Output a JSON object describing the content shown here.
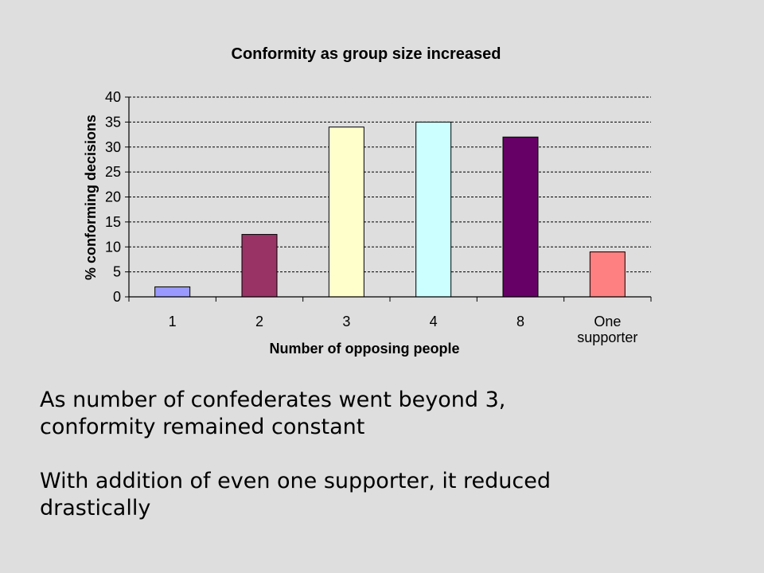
{
  "chart_data": {
    "type": "bar",
    "title": "Conformity as group size increased",
    "xlabel": "Number of opposing people",
    "ylabel": "% conforming decisions",
    "categories": [
      "1",
      "2",
      "3",
      "4",
      "8",
      "One supporter"
    ],
    "category_lines": [
      [
        "1"
      ],
      [
        "2"
      ],
      [
        "3"
      ],
      [
        "4"
      ],
      [
        "8"
      ],
      [
        "One",
        "supporter"
      ]
    ],
    "values": [
      2,
      12.5,
      34,
      35,
      32,
      9
    ],
    "bar_colors": [
      "#9999ff",
      "#993366",
      "#ffffcc",
      "#ccffff",
      "#660066",
      "#ff8080"
    ],
    "ylim": [
      0,
      40
    ],
    "yticks": [
      0,
      5,
      10,
      15,
      20,
      25,
      30,
      35,
      40
    ],
    "grid": true
  },
  "notes": {
    "line1": "As number of confederates went beyond 3,",
    "line2": "conformity remained constant",
    "line3": "With addition of even one supporter, it reduced",
    "line4": "drastically"
  }
}
